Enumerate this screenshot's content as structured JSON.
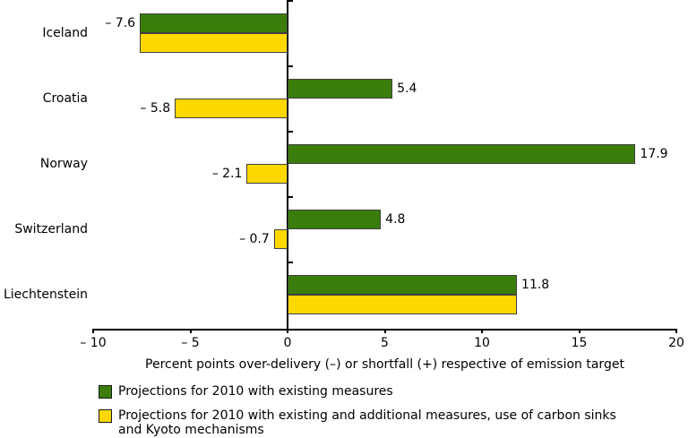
{
  "chart_data": {
    "type": "bar",
    "orientation": "horizontal",
    "title": "",
    "xlabel": "Percent points over-delivery (–) or shortfall (+) respective of emission target",
    "xlim": [
      -10,
      20
    ],
    "xticks": [
      -10,
      -5,
      0,
      5,
      10,
      15,
      20
    ],
    "xtick_labels": [
      "– 10",
      "– 5",
      "0",
      "5",
      "10",
      "15",
      "20"
    ],
    "grid": false,
    "legend_position": "bottom",
    "background": "#FFFFFF",
    "axis_color": "#000000",
    "bar_border_color": "#3F3F3F",
    "categories": [
      "Iceland",
      "Croatia",
      "Norway",
      "Switzerland",
      "Liechtenstein"
    ],
    "series": [
      {
        "name": "Projections for 2010 with existing measures",
        "color": "#3A7D0B",
        "values": [
          -7.6,
          5.4,
          17.9,
          4.8,
          11.8
        ],
        "labels": [
          "– 7.6",
          "5.4",
          "17.9",
          "4.8",
          "11.8"
        ]
      },
      {
        "name": "Projections for 2010 with existing and additional measures, use of carbon sinks and Kyoto mechanisms",
        "color": "#FFD800",
        "values": [
          -7.6,
          -5.8,
          -2.1,
          -0.7,
          11.8
        ],
        "labels": [
          "",
          "– 5.8",
          "– 2.1",
          "– 0.7",
          ""
        ]
      }
    ]
  },
  "legend": {
    "items": [
      {
        "lines": [
          "Projections for 2010 with existing measures"
        ]
      },
      {
        "lines": [
          "Projections for 2010 with existing and additional measures, use of carbon sinks",
          "and Kyoto mechanisms"
        ]
      }
    ]
  }
}
